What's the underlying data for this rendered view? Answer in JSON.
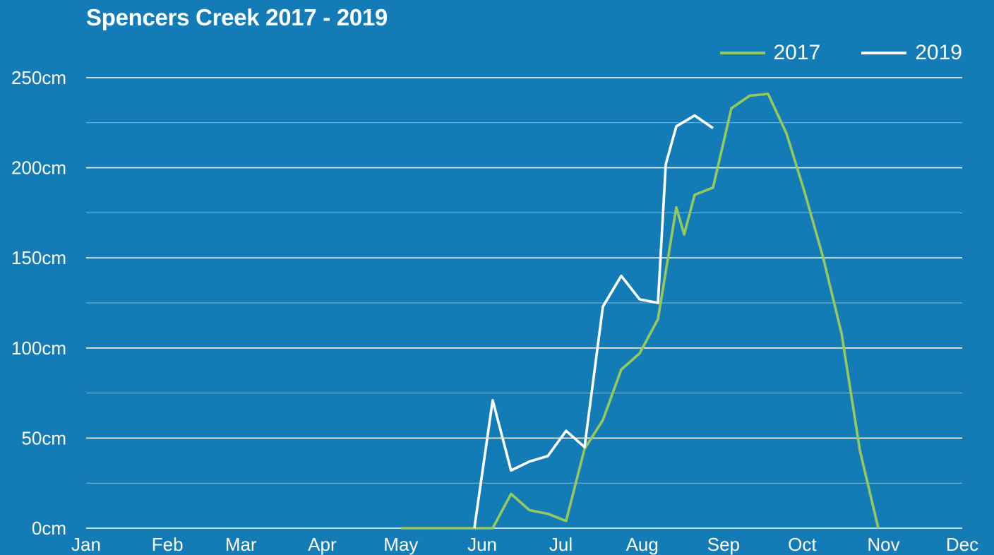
{
  "chart_data": {
    "type": "line",
    "title": "Spencers Creek 2017 - 2019",
    "xlabel": "",
    "ylabel": "",
    "ylim": [
      0,
      250
    ],
    "y_ticks": [
      "0cm",
      "50cm",
      "100cm",
      "150cm",
      "200cm",
      "250cm"
    ],
    "y_tick_values": [
      0,
      50,
      100,
      150,
      200,
      250
    ],
    "minor_gridlines": [
      25,
      75,
      125,
      175,
      225
    ],
    "x_ticks": [
      "Jan",
      "Feb",
      "Mar",
      "Apr",
      "May",
      "Jun",
      "Jul",
      "Aug",
      "Sep",
      "Oct",
      "Nov",
      "Dec"
    ],
    "x_domain_months": [
      0,
      11
    ],
    "grid": true,
    "legend_position": "top-right",
    "series": [
      {
        "name": "2017",
        "color": "#95c95c",
        "x": [
          "May 1",
          "May 8",
          "May 15",
          "May 22",
          "May 29",
          "Jun 5",
          "Jun 12",
          "Jun 19",
          "Jun 26",
          "Jul 3",
          "Jul 10",
          "Jul 17",
          "Jul 24",
          "Jul 31",
          "Aug 7",
          "Aug 14",
          "Aug 17",
          "Aug 21",
          "Aug 28",
          "Sep 4",
          "Sep 11",
          "Sep 18",
          "Sep 25",
          "Oct 2",
          "Oct 9",
          "Oct 16",
          "Oct 23",
          "Oct 30",
          "Nov 6",
          "Nov 13"
        ],
        "values": [
          0,
          0,
          0,
          0,
          0,
          0,
          19,
          10,
          8,
          4,
          44,
          60,
          88,
          97,
          116,
          178,
          163,
          185,
          189,
          233,
          240,
          241,
          219,
          186,
          150,
          108,
          43,
          0,
          null,
          null
        ]
      },
      {
        "name": "2019",
        "color": "#ffffff",
        "x": [
          "May 29",
          "Jun 5",
          "Jun 12",
          "Jun 19",
          "Jun 26",
          "Jul 3",
          "Jul 10",
          "Jul 17",
          "Jul 24",
          "Jul 31",
          "Aug 7",
          "Aug 10",
          "Aug 14",
          "Aug 21",
          "Aug 28",
          "Sep 4",
          "Sep 8"
        ],
        "values": [
          0,
          71,
          32,
          37,
          40,
          54,
          45,
          123,
          140,
          127,
          125,
          202,
          223,
          229,
          222,
          null,
          null
        ]
      }
    ]
  }
}
